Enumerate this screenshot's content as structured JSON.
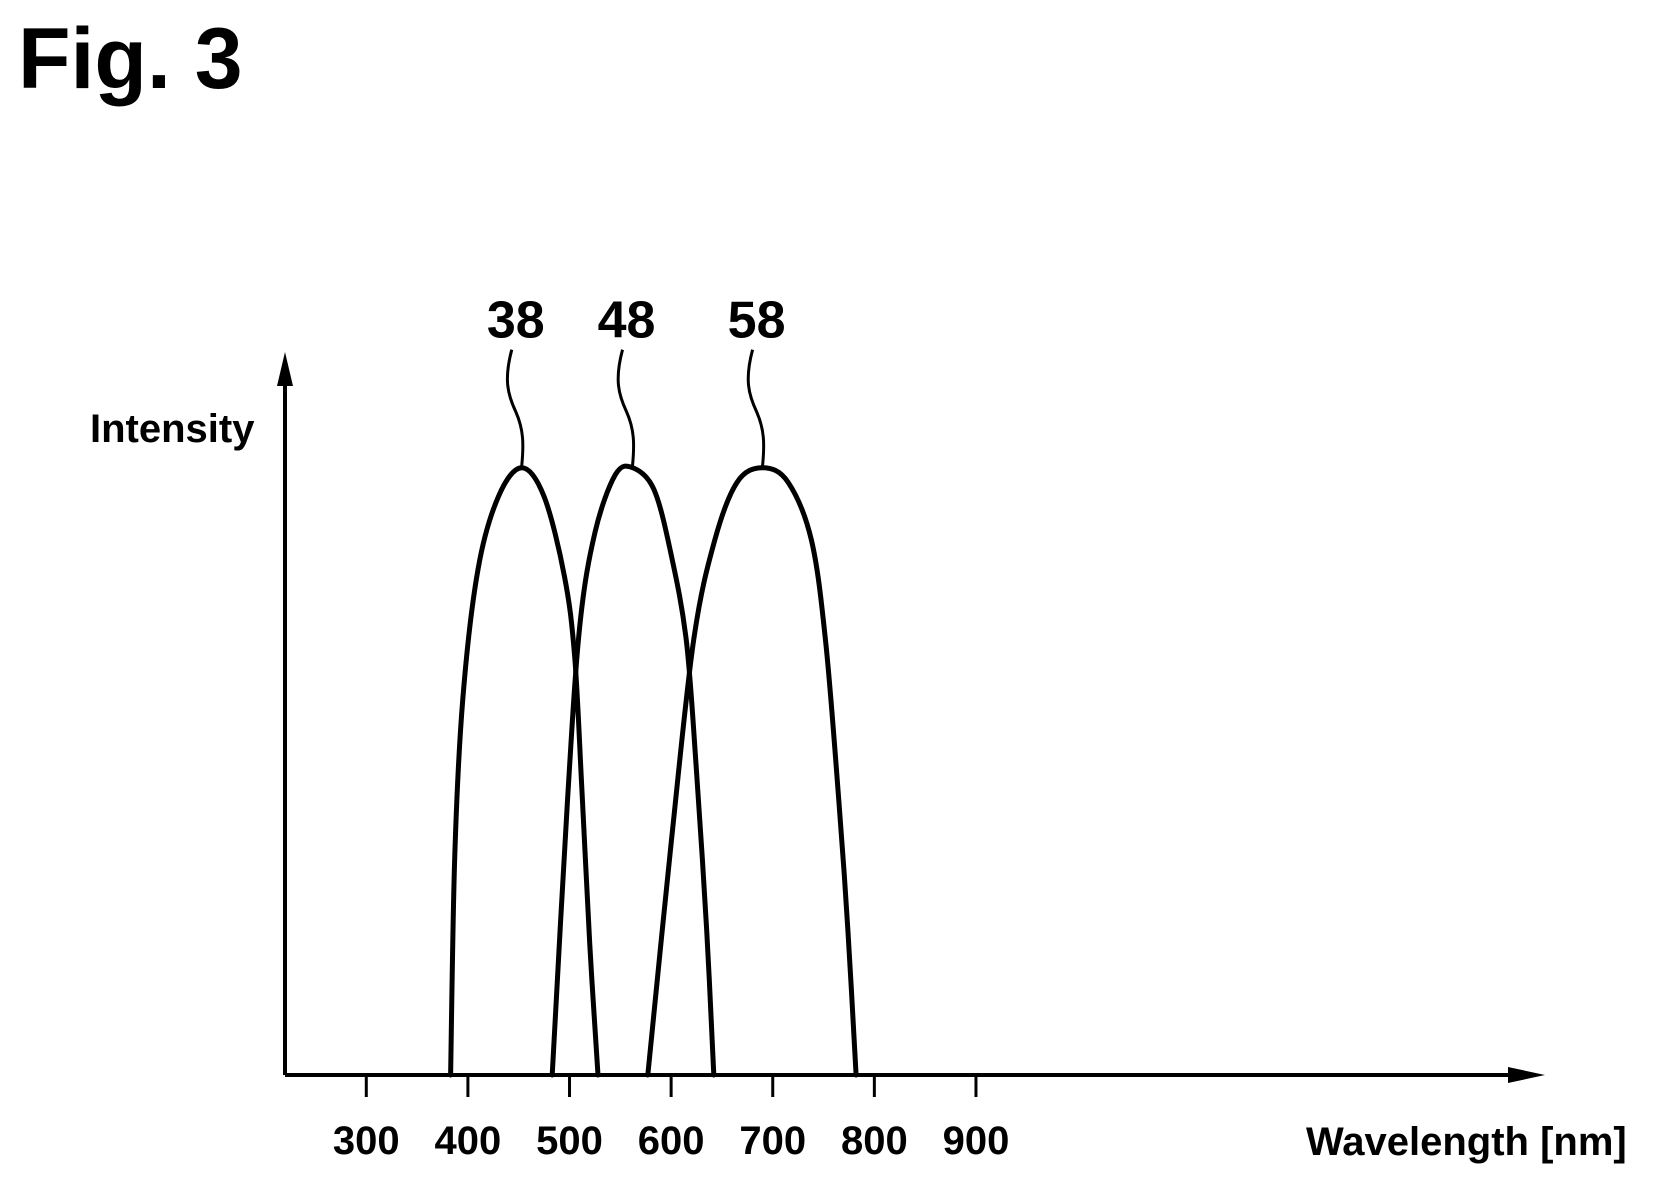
{
  "figure": {
    "title": "Fig. 3"
  },
  "chart_data": {
    "type": "line",
    "title": "",
    "xlabel": "Wavelength [nm]",
    "ylabel": "Intensity",
    "xlim": [
      220,
      1460
    ],
    "ylim": [
      0,
      1
    ],
    "grid": false,
    "x_ticks": [
      300,
      400,
      500,
      600,
      700,
      800,
      900
    ],
    "x_tick_labels": [
      "300",
      "400",
      "500",
      "600",
      "700",
      "800",
      "900"
    ],
    "series": [
      {
        "name": "38",
        "points": [
          [
            383,
            0
          ],
          [
            387,
            0.3
          ],
          [
            395,
            0.52
          ],
          [
            410,
            0.7
          ],
          [
            430,
            0.8
          ],
          [
            453,
            0.84
          ],
          [
            475,
            0.8
          ],
          [
            495,
            0.69
          ],
          [
            505,
            0.58
          ],
          [
            512,
            0.4
          ],
          [
            520,
            0.18
          ],
          [
            528,
            0
          ]
        ]
      },
      {
        "name": "48",
        "points": [
          [
            483,
            0
          ],
          [
            498,
            0.38
          ],
          [
            510,
            0.62
          ],
          [
            525,
            0.75
          ],
          [
            545,
            0.83
          ],
          [
            562,
            0.84
          ],
          [
            583,
            0.81
          ],
          [
            600,
            0.72
          ],
          [
            615,
            0.6
          ],
          [
            625,
            0.42
          ],
          [
            635,
            0.2
          ],
          [
            642,
            0
          ]
        ]
      },
      {
        "name": "58",
        "points": [
          [
            577,
            0
          ],
          [
            600,
            0.32
          ],
          [
            622,
            0.6
          ],
          [
            643,
            0.74
          ],
          [
            665,
            0.82
          ],
          [
            690,
            0.84
          ],
          [
            715,
            0.82
          ],
          [
            738,
            0.74
          ],
          [
            752,
            0.6
          ],
          [
            765,
            0.38
          ],
          [
            774,
            0.2
          ],
          [
            782,
            0
          ]
        ]
      }
    ],
    "annotations": [
      {
        "text": "38",
        "x": 453,
        "y": 0.84
      },
      {
        "text": "48",
        "x": 562,
        "y": 0.84
      },
      {
        "text": "58",
        "x": 690,
        "y": 0.84
      }
    ]
  }
}
